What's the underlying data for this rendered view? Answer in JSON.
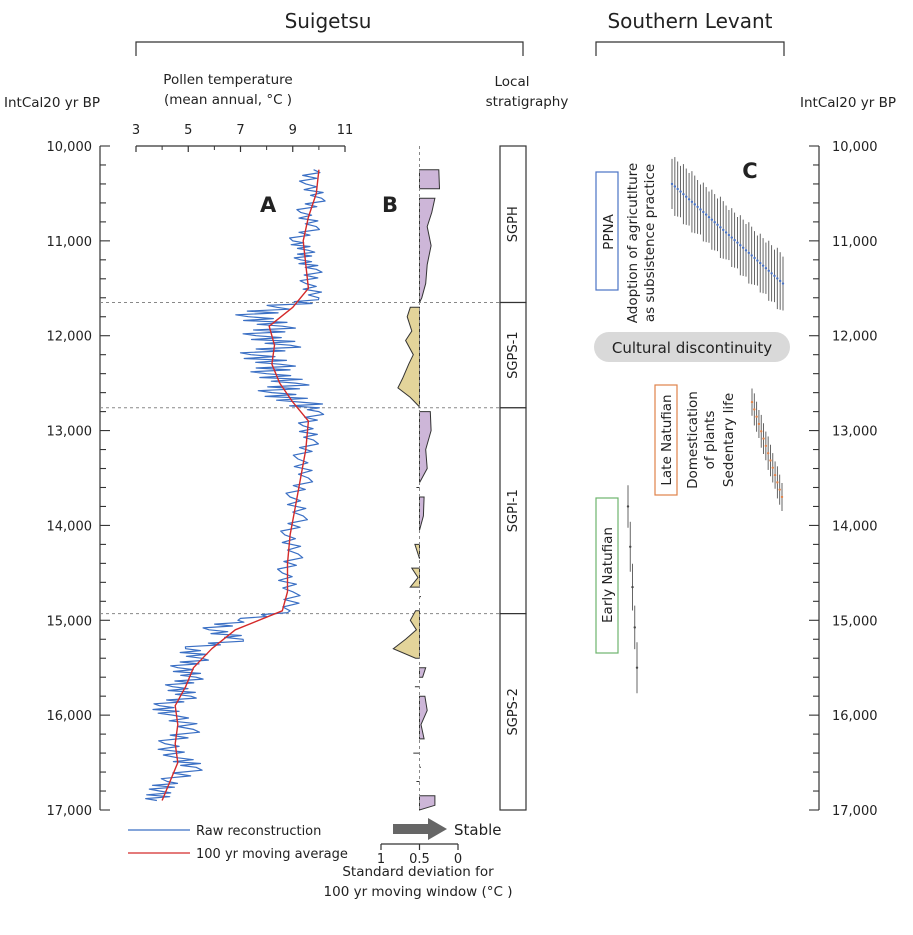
{
  "headers": {
    "suigetsu": "Suigetsu",
    "southern_levant": "Southern Levant"
  },
  "axes": {
    "left_title": "IntCal20 yr BP",
    "right_title": "IntCal20 yr BP",
    "age_ticks": [
      "10,000",
      "11,000",
      "12,000",
      "13,000",
      "14,000",
      "15,000",
      "16,000",
      "17,000"
    ],
    "temp_title_line1": "Pollen temperature",
    "temp_title_line2": "(mean annual, °C )",
    "temp_ticks": [
      "3",
      "5",
      "7",
      "9",
      "11"
    ],
    "sd_title_line1": "Standard deviation for",
    "sd_title_line2": "100 yr moving window (°C )",
    "sd_ticks": [
      "1",
      "0.5",
      "0"
    ],
    "strat_title_line1": "Local",
    "strat_title_line2": "stratigraphy"
  },
  "panel_labels": {
    "a": "A",
    "b": "B",
    "c": "C"
  },
  "legend": {
    "raw": "Raw reconstruction",
    "raw_color": "#3a6fc4",
    "avg": "100 yr moving average",
    "avg_color": "#d42a2a",
    "stable": "Stable"
  },
  "stratigraphy": [
    {
      "label": "SGPH",
      "from": 10000,
      "to": 11650
    },
    {
      "label": "SGPS-1",
      "from": 11650,
      "to": 12760
    },
    {
      "label": "SGPI-1",
      "from": 12760,
      "to": 14930
    },
    {
      "label": "SGPS-2",
      "from": 14930,
      "to": 17000
    }
  ],
  "boundaries": [
    11650,
    12760,
    14930
  ],
  "cultural": {
    "ppna": "PPNA",
    "ppna_color": "#4a73c4",
    "ppna_note_line1": "Adoption of agricutlture",
    "ppna_note_line2": "as subsistence practice",
    "discontinuity": "Cultural discontinuity",
    "late_natufian": "Late Natufian",
    "late_color": "#e0824a",
    "late_note_line1": "Domestication",
    "late_note_line2": "of plants",
    "late_note_line3": "Sedentary life",
    "early_natufian": "Early Natufian",
    "early_color": "#6db56d"
  },
  "chart_data": [
    {
      "type": "line",
      "title": "Suigetsu",
      "xlabel": "Pollen temperature (mean annual, °C )",
      "ylabel": "IntCal20 yr BP",
      "xlim": [
        3,
        11
      ],
      "ylim": [
        17000,
        10000
      ],
      "series": [
        {
          "name": "Raw reconstruction",
          "points": [
            [
              10250,
              9.8
            ],
            [
              10400,
              9.5
            ],
            [
              10550,
              10.1
            ],
            [
              10700,
              9.3
            ],
            [
              10850,
              9.9
            ],
            [
              11000,
              9.0
            ],
            [
              11100,
              9.6
            ],
            [
              11200,
              9.3
            ],
            [
              11300,
              9.9
            ],
            [
              11450,
              9.5
            ],
            [
              11600,
              10.0
            ],
            [
              11700,
              8.4
            ],
            [
              11800,
              7.3
            ],
            [
              11900,
              8.6
            ],
            [
              12000,
              7.6
            ],
            [
              12100,
              8.9
            ],
            [
              12200,
              7.4
            ],
            [
              12300,
              8.5
            ],
            [
              12400,
              8.0
            ],
            [
              12500,
              9.1
            ],
            [
              12600,
              8.2
            ],
            [
              12700,
              9.3
            ],
            [
              12800,
              10.0
            ],
            [
              12950,
              9.4
            ],
            [
              13100,
              9.8
            ],
            [
              13300,
              9.2
            ],
            [
              13500,
              9.6
            ],
            [
              13700,
              8.9
            ],
            [
              13900,
              9.4
            ],
            [
              14100,
              8.7
            ],
            [
              14300,
              9.2
            ],
            [
              14500,
              8.6
            ],
            [
              14700,
              9.0
            ],
            [
              14900,
              8.9
            ],
            [
              15000,
              6.9
            ],
            [
              15100,
              5.8
            ],
            [
              15200,
              7.1
            ],
            [
              15300,
              4.9
            ],
            [
              15400,
              5.5
            ],
            [
              15500,
              4.6
            ],
            [
              15600,
              5.3
            ],
            [
              15700,
              4.4
            ],
            [
              15800,
              5.1
            ],
            [
              15900,
              3.9
            ],
            [
              16000,
              4.4
            ],
            [
              16150,
              5.2
            ],
            [
              16300,
              4.1
            ],
            [
              16450,
              4.6
            ],
            [
              16550,
              5.3
            ],
            [
              16700,
              4.2
            ],
            [
              16800,
              3.9
            ],
            [
              16900,
              3.8
            ]
          ]
        },
        {
          "name": "100 yr moving average",
          "points": [
            [
              10250,
              10.0
            ],
            [
              10500,
              9.9
            ],
            [
              10750,
              9.6
            ],
            [
              11000,
              9.4
            ],
            [
              11250,
              9.5
            ],
            [
              11500,
              9.6
            ],
            [
              11700,
              9.0
            ],
            [
              11900,
              8.1
            ],
            [
              12100,
              8.3
            ],
            [
              12300,
              8.2
            ],
            [
              12500,
              8.5
            ],
            [
              12700,
              9.0
            ],
            [
              12900,
              9.6
            ],
            [
              13200,
              9.5
            ],
            [
              13500,
              9.3
            ],
            [
              13800,
              9.1
            ],
            [
              14100,
              8.9
            ],
            [
              14400,
              8.8
            ],
            [
              14700,
              8.8
            ],
            [
              14900,
              8.6
            ],
            [
              15100,
              6.8
            ],
            [
              15300,
              5.9
            ],
            [
              15500,
              5.2
            ],
            [
              15700,
              4.9
            ],
            [
              15900,
              4.5
            ],
            [
              16100,
              4.6
            ],
            [
              16300,
              4.5
            ],
            [
              16500,
              4.6
            ],
            [
              16700,
              4.3
            ],
            [
              16900,
              4.0
            ]
          ]
        }
      ]
    },
    {
      "type": "area",
      "xlabel": "Standard deviation for 100 yr moving window (°C )",
      "xlim": [
        1,
        0
      ],
      "reference": 0.5,
      "series": [
        {
          "name": "Standard deviation",
          "points": [
            [
              10250,
              0.5
            ],
            [
              10250,
              0.25
            ],
            [
              10450,
              0.24
            ],
            [
              10450,
              0.5
            ],
            [
              10550,
              0.5
            ],
            [
              10550,
              0.3
            ],
            [
              10700,
              0.34
            ],
            [
              10850,
              0.4
            ],
            [
              11050,
              0.35
            ],
            [
              11250,
              0.4
            ],
            [
              11450,
              0.42
            ],
            [
              11600,
              0.47
            ],
            [
              11650,
              0.5
            ],
            [
              11700,
              0.62
            ],
            [
              11800,
              0.66
            ],
            [
              11950,
              0.6
            ],
            [
              12050,
              0.68
            ],
            [
              12200,
              0.58
            ],
            [
              12300,
              0.64
            ],
            [
              12450,
              0.72
            ],
            [
              12550,
              0.78
            ],
            [
              12650,
              0.62
            ],
            [
              12750,
              0.5
            ],
            [
              12800,
              0.36
            ],
            [
              13000,
              0.35
            ],
            [
              13200,
              0.42
            ],
            [
              13400,
              0.4
            ],
            [
              13550,
              0.5
            ],
            [
              13600,
              0.54
            ],
            [
              13700,
              0.44
            ],
            [
              13900,
              0.45
            ],
            [
              14050,
              0.5
            ],
            [
              14200,
              0.56
            ],
            [
              14350,
              0.5
            ],
            [
              14450,
              0.6
            ],
            [
              14550,
              0.52
            ],
            [
              14650,
              0.62
            ],
            [
              14750,
              0.48
            ],
            [
              14900,
              0.55
            ],
            [
              15000,
              0.62
            ],
            [
              15100,
              0.54
            ],
            [
              15200,
              0.68
            ],
            [
              15300,
              0.84
            ],
            [
              15400,
              0.55
            ],
            [
              15500,
              0.42
            ],
            [
              15600,
              0.46
            ],
            [
              15700,
              0.56
            ],
            [
              15800,
              0.43
            ],
            [
              15950,
              0.4
            ],
            [
              16100,
              0.48
            ],
            [
              16250,
              0.44
            ],
            [
              16400,
              0.58
            ],
            [
              16550,
              0.48
            ],
            [
              16700,
              0.54
            ],
            [
              16850,
              0.3
            ],
            [
              16950,
              0.3
            ],
            [
              17000,
              0.5
            ]
          ]
        }
      ]
    },
    {
      "type": "scatter",
      "xlabel": "",
      "ylabel": "IntCal20 yr BP",
      "ylim": [
        17000,
        10000
      ],
      "series": [
        {
          "name": "PPNA",
          "points": [
            [
              10400,
              1.2
            ],
            [
              10500,
              1.0
            ],
            [
              10600,
              1.1
            ],
            [
              10700,
              0.9
            ],
            [
              10800,
              1.3
            ],
            [
              10900,
              1.0
            ],
            [
              11000,
              1.2
            ],
            [
              11100,
              1.1
            ],
            [
              11200,
              1.3
            ],
            [
              11300,
              1.0
            ],
            [
              11400,
              1.2
            ],
            [
              11450,
              1.1
            ]
          ]
        },
        {
          "name": "Late Natufian",
          "points": [
            [
              12700,
              0.8
            ],
            [
              12850,
              0.9
            ],
            [
              13000,
              0.7
            ],
            [
              13150,
              0.8
            ],
            [
              13300,
              0.9
            ],
            [
              13450,
              0.7
            ],
            [
              13600,
              0.8
            ],
            [
              13700,
              0.9
            ]
          ]
        },
        {
          "name": "Early Natufian",
          "points": [
            [
              13800,
              1.4
            ],
            [
              14200,
              1.5
            ],
            [
              14700,
              1.7
            ],
            [
              15100,
              1.6
            ],
            [
              15500,
              1.5
            ]
          ]
        }
      ]
    }
  ]
}
